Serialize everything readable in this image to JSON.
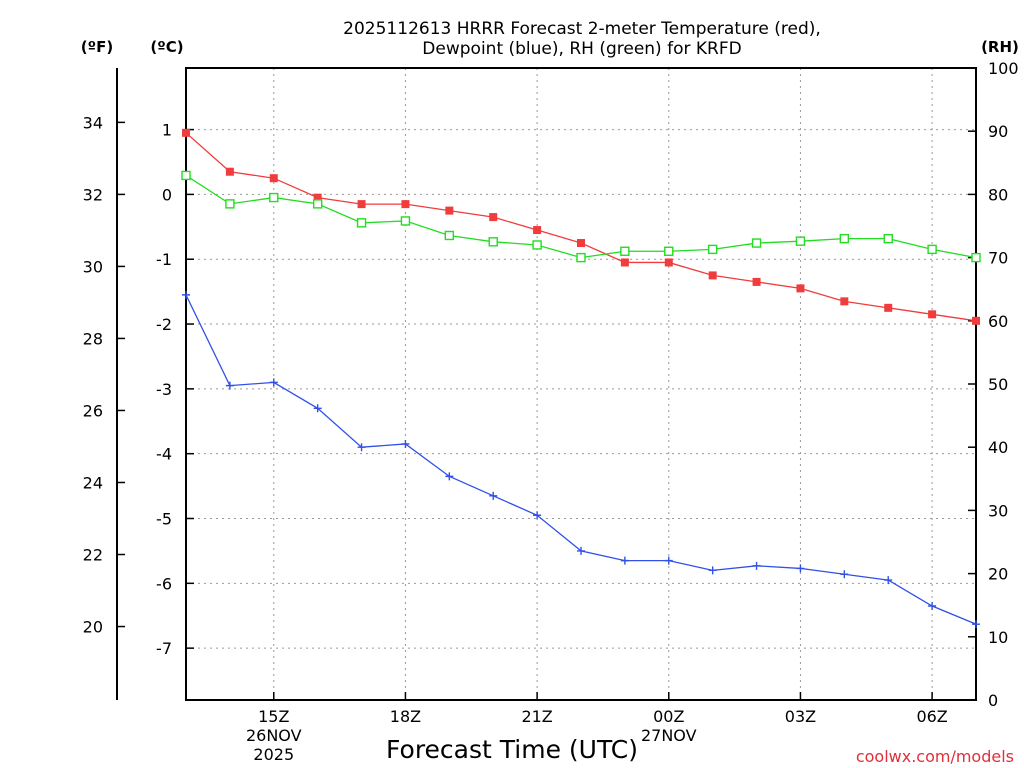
{
  "chart_data": {
    "type": "line",
    "title_line1": "2025112613 HRRR Forecast 2-meter Temperature (red),",
    "title_line2": "Dewpoint (blue), RH (green) for KRFD",
    "xlabel": "Forecast Time (UTC)",
    "credit": "coolwx.com/models",
    "units": {
      "fahrenheit": "(ºF)",
      "celsius": "(ºC)",
      "rh": "(RH)"
    },
    "x_hours": [
      13,
      14,
      15,
      16,
      17,
      18,
      19,
      20,
      21,
      22,
      23,
      24,
      25,
      26,
      27,
      28,
      29,
      30,
      31
    ],
    "x_ticks": [
      {
        "hour": 15,
        "label": "15Z",
        "sub1": "26NOV",
        "sub2": "2025"
      },
      {
        "hour": 18,
        "label": "18Z",
        "sub1": "",
        "sub2": ""
      },
      {
        "hour": 21,
        "label": "21Z",
        "sub1": "",
        "sub2": ""
      },
      {
        "hour": 24,
        "label": "00Z",
        "sub1": "27NOV",
        "sub2": ""
      },
      {
        "hour": 27,
        "label": "03Z",
        "sub1": "",
        "sub2": ""
      },
      {
        "hour": 30,
        "label": "06Z",
        "sub1": "",
        "sub2": ""
      }
    ],
    "y_celsius": {
      "range": [
        -7.8,
        1.95
      ],
      "ticks": [
        1,
        0,
        -1,
        -2,
        -3,
        -4,
        -5,
        -6,
        -7
      ]
    },
    "y_fahrenheit": {
      "ticks": [
        34,
        32,
        30,
        28,
        26,
        24,
        22,
        20
      ]
    },
    "y_rh": {
      "range": [
        0,
        100
      ],
      "ticks": [
        100,
        90,
        80,
        70,
        60,
        50,
        40,
        30,
        20,
        10,
        0
      ]
    },
    "series": [
      {
        "name": "Temperature",
        "color": "#f03c3c",
        "marker": "filled-square",
        "axis": "celsius",
        "values": [
          0.95,
          0.35,
          0.25,
          -0.05,
          -0.15,
          -0.15,
          -0.25,
          -0.35,
          -0.55,
          -0.75,
          -1.05,
          -1.05,
          -1.25,
          -1.35,
          -1.45,
          -1.65,
          -1.75,
          -1.85,
          -1.95
        ]
      },
      {
        "name": "Dewpoint",
        "color": "#3050e8",
        "marker": "plus",
        "axis": "celsius",
        "values": [
          -1.55,
          -2.95,
          -2.9,
          -3.3,
          -3.9,
          -3.85,
          -4.35,
          -4.65,
          -4.95,
          -5.5,
          -5.65,
          -5.65,
          -5.8,
          -5.73,
          -5.77,
          -5.86,
          -5.95,
          -6.35,
          -6.63
        ]
      },
      {
        "name": "RH",
        "color": "#22dd22",
        "marker": "open-square",
        "axis": "rh",
        "values": [
          83,
          78.5,
          79.5,
          78.5,
          75.5,
          75.8,
          73.5,
          72.5,
          72,
          70,
          71,
          71,
          71.3,
          72.3,
          72.6,
          73,
          73,
          71.3,
          70
        ]
      }
    ]
  }
}
